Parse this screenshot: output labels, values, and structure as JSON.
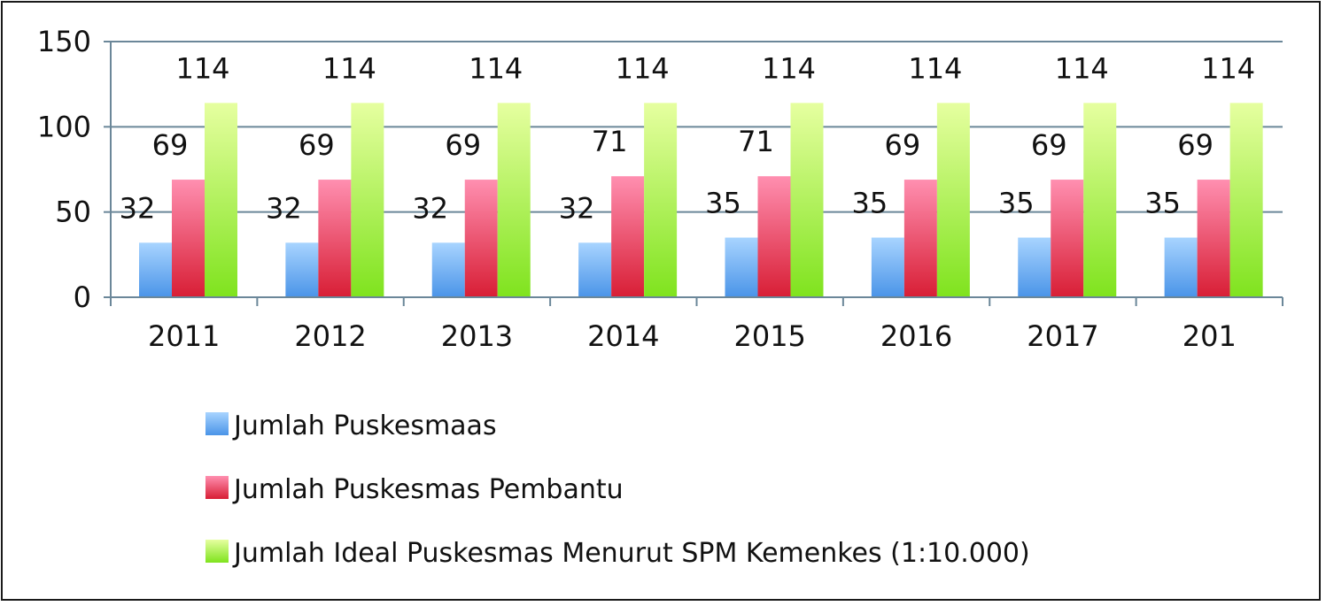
{
  "chart_data": {
    "type": "bar",
    "categories": [
      "2011",
      "2012",
      "2013",
      "2014",
      "2015",
      "2016",
      "2017",
      "201"
    ],
    "series": [
      {
        "name": "Jumlah Puskesmaas",
        "values": [
          32,
          32,
          32,
          32,
          35,
          35,
          35,
          35
        ],
        "color_top": "#a8d4ff",
        "color_bottom": "#4a94e8"
      },
      {
        "name": "Jumlah Puskesmas Pembantu",
        "values": [
          69,
          69,
          69,
          71,
          71,
          69,
          69,
          69
        ],
        "color_top": "#ff8fb0",
        "color_bottom": "#d81e35"
      },
      {
        "name": "Jumlah Ideal Puskesmas Menurut SPM Kemenkes (1:10.000)",
        "values": [
          114,
          114,
          114,
          114,
          114,
          114,
          114,
          114
        ],
        "color_top": "#e6ffa0",
        "color_bottom": "#7fe31e"
      }
    ],
    "ylim": [
      0,
      150
    ],
    "yticks": [
      "0",
      "50",
      "100",
      "150"
    ],
    "grid": true,
    "legend_position": "bottom",
    "title": "",
    "xlabel": "",
    "ylabel": ""
  }
}
